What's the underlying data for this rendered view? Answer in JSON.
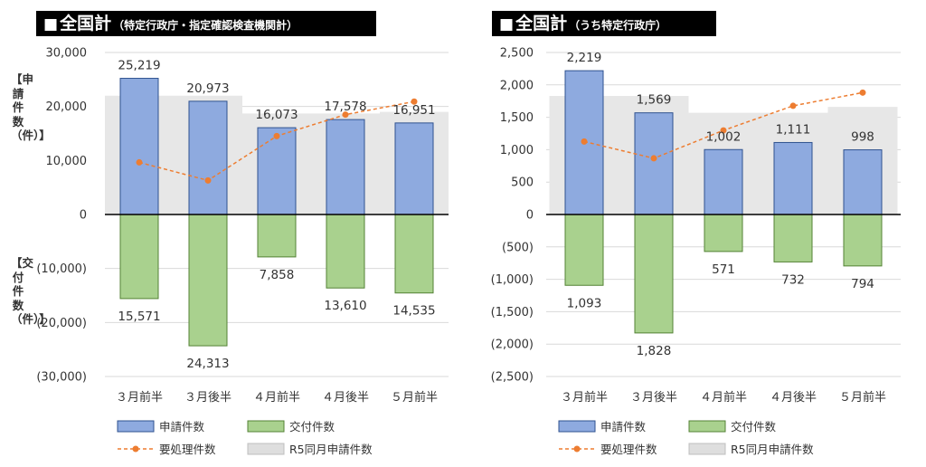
{
  "colors": {
    "applications": "#8eaadf",
    "applications_border": "#2f528f",
    "issued": "#a9d18e",
    "issued_border": "#548235",
    "pending": "#ed7d31",
    "r5": "#e7e7e7",
    "gridline": "#d9d9d9",
    "zero_line": "#000000"
  },
  "charts": [
    {
      "banner_square": "■",
      "banner_main": "全国計",
      "banner_sub": "（特定行政庁・指定確認検査機関計）",
      "ylabel_top": "【申請件数（件）】",
      "ylabel_bottom": "【交付件数（件）】"
    },
    {
      "banner_square": "■",
      "banner_main": "全国計",
      "banner_sub": "（うち特定行政庁）",
      "ylabel_top": "",
      "ylabel_bottom": ""
    }
  ],
  "chart_data": [
    {
      "type": "bar",
      "categories": [
        "３月前半",
        "３月後半",
        "４月前半",
        "４月後半",
        "５月前半"
      ],
      "series": [
        {
          "name": "申請件数",
          "values": [
            25219,
            20973,
            16073,
            17578,
            16951
          ],
          "labels": [
            "25,219",
            "20,973",
            "16,073",
            "17,578",
            "16,951"
          ]
        },
        {
          "name": "交付件数",
          "values": [
            -15571,
            -24313,
            -7858,
            -13610,
            -14535
          ],
          "labels": [
            "15,571",
            "24,313",
            "7,858",
            "13,610",
            "14,535"
          ]
        },
        {
          "name": "要処理件数",
          "kind": "line",
          "values": [
            9648,
            6308,
            14523,
            18491,
            20907
          ]
        },
        {
          "name": "R5同月申請件数",
          "kind": "area",
          "values": [
            22000,
            22000,
            18700,
            18700,
            19000
          ]
        }
      ],
      "ylim": [
        -30000,
        30000
      ],
      "yticks": [
        30000,
        20000,
        10000,
        0,
        -10000,
        -20000,
        -30000
      ],
      "ytick_labels": [
        "30,000",
        "20,000",
        "10,000",
        "0",
        "(10,000)",
        "(20,000)",
        "(30,000)"
      ],
      "grid": true,
      "legend": "bottom"
    },
    {
      "type": "bar",
      "categories": [
        "３月前半",
        "３月後半",
        "４月前半",
        "４月後半",
        "５月前半"
      ],
      "series": [
        {
          "name": "申請件数",
          "values": [
            2219,
            1569,
            1002,
            1111,
            998
          ],
          "labels": [
            "2,219",
            "1,569",
            "1,002",
            "1,111",
            "998"
          ]
        },
        {
          "name": "交付件数",
          "values": [
            -1093,
            -1828,
            -571,
            -732,
            -794
          ],
          "labels": [
            "1,093",
            "1,828",
            "571",
            "732",
            "794"
          ]
        },
        {
          "name": "要処理件数",
          "kind": "line",
          "values": [
            1126,
            867,
            1298,
            1677,
            1881
          ]
        },
        {
          "name": "R5同月申請件数",
          "kind": "area",
          "values": [
            1830,
            1830,
            1570,
            1570,
            1660
          ]
        }
      ],
      "ylim": [
        -2500,
        2500
      ],
      "yticks": [
        2500,
        2000,
        1500,
        1000,
        500,
        0,
        -500,
        -1000,
        -1500,
        -2000,
        -2500
      ],
      "ytick_labels": [
        "2,500",
        "2,000",
        "1,500",
        "1,000",
        "500",
        "0",
        "(500)",
        "(1,000)",
        "(1,500)",
        "(2,000)",
        "(2,500)"
      ],
      "grid": true,
      "legend": "bottom"
    }
  ]
}
